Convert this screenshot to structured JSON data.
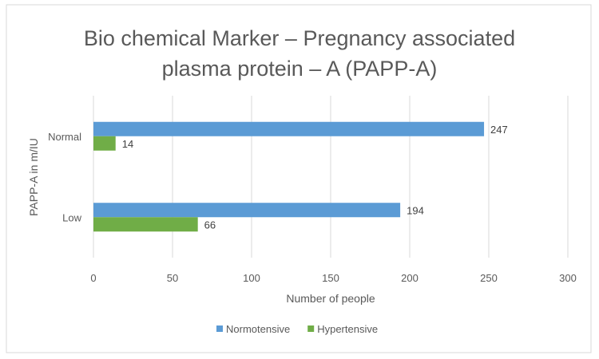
{
  "chart_data": {
    "type": "bar",
    "orientation": "horizontal",
    "title_lines": [
      "Bio chemical Marker – Pregnancy associated",
      "plasma protein – A (PAPP-A)"
    ],
    "categories": [
      "Normal",
      "Low"
    ],
    "series": [
      {
        "name": "Normotensive",
        "values": [
          247,
          194
        ],
        "color": "#5B9BD5"
      },
      {
        "name": "Hypertensive",
        "values": [
          14,
          66
        ],
        "color": "#70AD47"
      }
    ],
    "xlabel": "Number of people",
    "ylabel": "PAPP-A in  m/IU",
    "xlim": [
      0,
      300
    ],
    "xticks": [
      "0",
      "50",
      "100",
      "150",
      "200",
      "250",
      "300"
    ],
    "grid": true,
    "legend_position": "bottom",
    "colors": {
      "gridline": "#D9D9D9",
      "border": "#D9D9D9",
      "text": "#595959"
    }
  }
}
